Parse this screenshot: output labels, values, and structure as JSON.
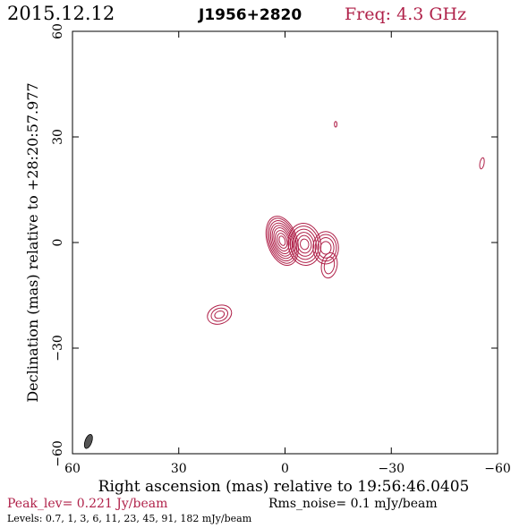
{
  "header": {
    "date": "2015.12.12",
    "source": "J1956+2820",
    "freq": "Freq: 4.3 GHz"
  },
  "footer": {
    "peak": "Peak_lev=  0.221 Jy/beam",
    "rms": "Rms_noise=  0.1 mJy/beam",
    "levels": "Levels: 0.7,    1,    3,    6,   11,   23,   45,   91, 182 mJy/beam"
  },
  "colors": {
    "contour": "#b0224a",
    "frame": "#000000",
    "beam": "#555555"
  },
  "chart_data": {
    "type": "contour",
    "title": "J1956+2820",
    "xlabel": "Right ascension (mas) relative to 19:56:46.0405",
    "ylabel": "Declination (mas) relative to +28:20:57.977",
    "xlim": [
      60,
      -60
    ],
    "ylim": [
      -60,
      60
    ],
    "xticks": [
      60,
      30,
      0,
      -30,
      -60
    ],
    "yticks": [
      60,
      30,
      0,
      -30,
      -60
    ],
    "xtick_labels": [
      "60",
      "30",
      "0",
      "−30",
      "−60"
    ],
    "ytick_labels": [
      "60",
      "30",
      "0",
      "−30",
      "−60"
    ],
    "levels_mJy": [
      0.7,
      1,
      3,
      6,
      11,
      23,
      45,
      91,
      182
    ],
    "components": [
      {
        "ra": 0.8,
        "dec": 0.5,
        "rx": [
          4.2,
          3.8,
          3.4,
          3.0,
          2.6,
          2.2,
          1.8,
          1.3,
          0.8
        ],
        "ry": [
          7.2,
          6.6,
          5.9,
          5.2,
          4.5,
          3.8,
          3.0,
          2.2,
          1.4
        ],
        "angle": -18
      },
      {
        "ra": -5.5,
        "dec": -0.5,
        "rx": [
          4.6,
          4.0,
          3.3,
          2.6,
          1.9,
          1.2
        ],
        "ry": [
          6.0,
          5.2,
          4.3,
          3.4,
          2.5,
          1.5
        ],
        "angle": -8
      },
      {
        "ra": -11.5,
        "dec": -1.5,
        "rx": [
          3.6,
          3.0,
          2.3,
          1.5
        ],
        "ry": [
          4.6,
          3.8,
          2.9,
          1.8
        ],
        "angle": 0
      },
      {
        "ra": -12.5,
        "dec": -6.5,
        "rx": [
          2.2,
          1.4
        ],
        "ry": [
          3.6,
          2.4
        ],
        "angle": 10
      },
      {
        "ra": 18.5,
        "dec": -20.5,
        "rx": [
          3.5,
          2.4,
          1.4
        ],
        "ry": [
          2.6,
          1.8,
          1.0
        ],
        "angle": -20
      },
      {
        "ra": -14.3,
        "dec": 33.6,
        "rx": [
          0.35
        ],
        "ry": [
          0.8
        ],
        "angle": 0
      },
      {
        "ra": -55.6,
        "dec": 22.5,
        "rx": [
          0.6
        ],
        "ry": [
          1.6
        ],
        "angle": 10
      }
    ],
    "beam": {
      "ra": 55.5,
      "dec": -56.5,
      "major_mas": 4.2,
      "minor_mas": 1.9,
      "pa_deg": 20
    }
  }
}
